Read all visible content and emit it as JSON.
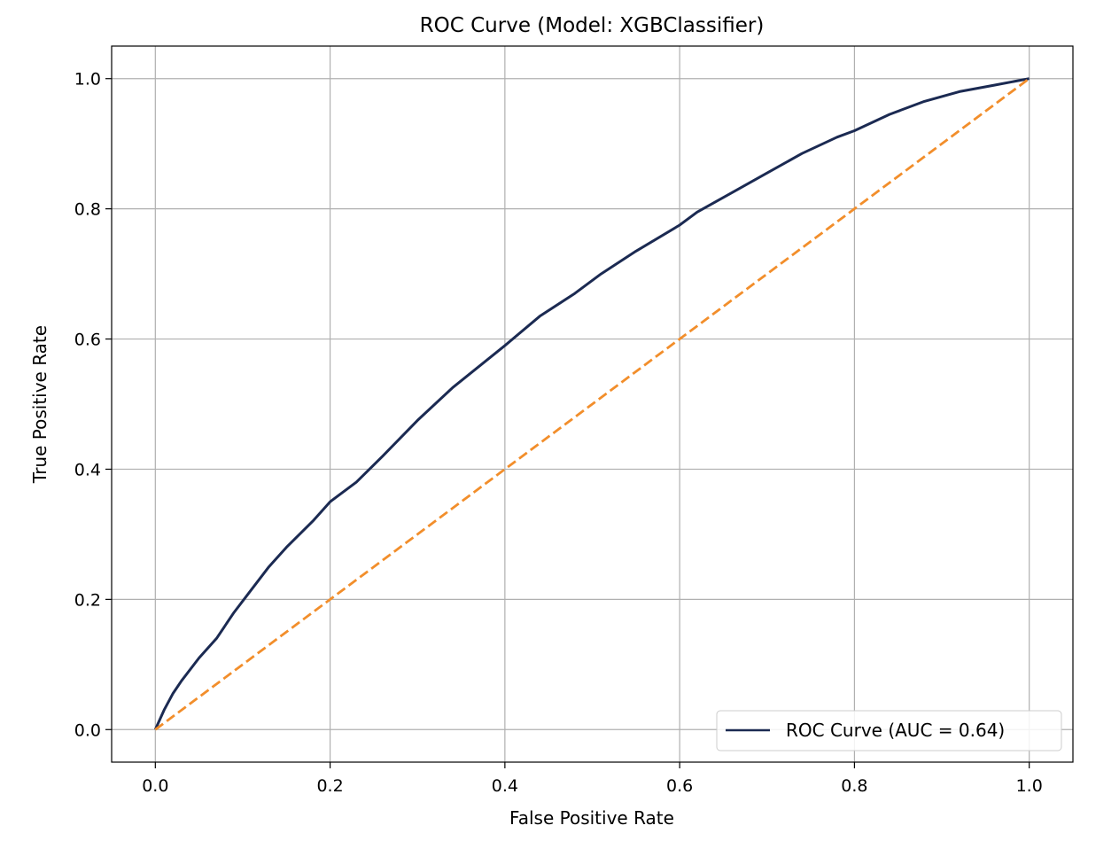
{
  "chart_data": {
    "type": "line",
    "title": "ROC Curve (Model: XGBClassifier)",
    "xlabel": "False Positive Rate",
    "ylabel": "True Positive Rate",
    "xlim": [
      -0.05,
      1.05
    ],
    "ylim": [
      -0.05,
      1.05
    ],
    "xticks": [
      0.0,
      0.2,
      0.4,
      0.6,
      0.8,
      1.0
    ],
    "yticks": [
      0.0,
      0.2,
      0.4,
      0.6,
      0.8,
      1.0
    ],
    "xtick_labels": [
      "0.0",
      "0.2",
      "0.4",
      "0.6",
      "0.8",
      "1.0"
    ],
    "ytick_labels": [
      "0.0",
      "0.2",
      "0.4",
      "0.6",
      "0.8",
      "1.0"
    ],
    "grid": true,
    "legend_position": "lower-right",
    "series": [
      {
        "name": "ROC Curve (AUC = 0.64)",
        "color": "#1b2a52",
        "style": "solid",
        "x": [
          0.0,
          0.01,
          0.02,
          0.03,
          0.05,
          0.07,
          0.09,
          0.11,
          0.13,
          0.15,
          0.18,
          0.2,
          0.23,
          0.26,
          0.3,
          0.34,
          0.4,
          0.44,
          0.48,
          0.51,
          0.55,
          0.6,
          0.62,
          0.66,
          0.7,
          0.74,
          0.78,
          0.8,
          0.84,
          0.88,
          0.92,
          0.96,
          1.0
        ],
        "y": [
          0.0,
          0.03,
          0.055,
          0.075,
          0.11,
          0.14,
          0.18,
          0.215,
          0.25,
          0.28,
          0.32,
          0.35,
          0.38,
          0.42,
          0.475,
          0.525,
          0.59,
          0.635,
          0.67,
          0.7,
          0.735,
          0.775,
          0.795,
          0.825,
          0.855,
          0.885,
          0.91,
          0.92,
          0.945,
          0.965,
          0.98,
          0.99,
          1.0
        ]
      },
      {
        "name": "",
        "color": "#f28e2b",
        "style": "dashed",
        "x": [
          0.0,
          1.0
        ],
        "y": [
          0.0,
          1.0
        ]
      }
    ]
  }
}
